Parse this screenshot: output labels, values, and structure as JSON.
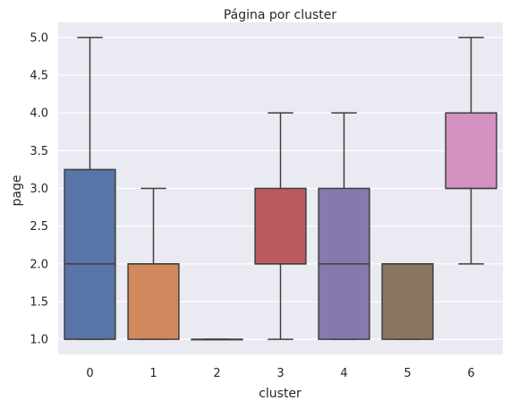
{
  "chart_data": {
    "type": "box",
    "title": "Página por cluster",
    "xlabel": "cluster",
    "ylabel": "page",
    "ylim": [
      0.8,
      5.2
    ],
    "yticks": [
      "1.0",
      "1.5",
      "2.0",
      "2.5",
      "3.0",
      "3.5",
      "4.0",
      "4.5",
      "5.0"
    ],
    "grid": true,
    "categories": [
      "0",
      "1",
      "2",
      "3",
      "4",
      "5",
      "6"
    ],
    "boxes": [
      {
        "category": "0",
        "min": 1.0,
        "q1": 1.0,
        "median": 2.0,
        "q3": 3.25,
        "max": 5.0,
        "color": "#5874a8"
      },
      {
        "category": "1",
        "min": 1.0,
        "q1": 1.0,
        "median": 2.0,
        "q3": 2.0,
        "max": 3.0,
        "color": "#d1885c"
      },
      {
        "category": "2",
        "min": 1.0,
        "q1": 1.0,
        "median": 1.0,
        "q3": 1.0,
        "max": 1.0,
        "color": "#60a068"
      },
      {
        "category": "3",
        "min": 1.0,
        "q1": 2.0,
        "median": 2.0,
        "q3": 3.0,
        "max": 4.0,
        "color": "#bb5a5f"
      },
      {
        "category": "4",
        "min": 1.0,
        "q1": 1.0,
        "median": 2.0,
        "q3": 3.0,
        "max": 4.0,
        "color": "#8779ae"
      },
      {
        "category": "5",
        "min": 1.0,
        "q1": 1.0,
        "median": 2.0,
        "q3": 2.0,
        "max": 2.0,
        "color": "#8c7560"
      },
      {
        "category": "6",
        "min": 2.0,
        "q1": 3.0,
        "median": 3.0,
        "q3": 4.0,
        "max": 5.0,
        "color": "#d492c2"
      }
    ]
  }
}
